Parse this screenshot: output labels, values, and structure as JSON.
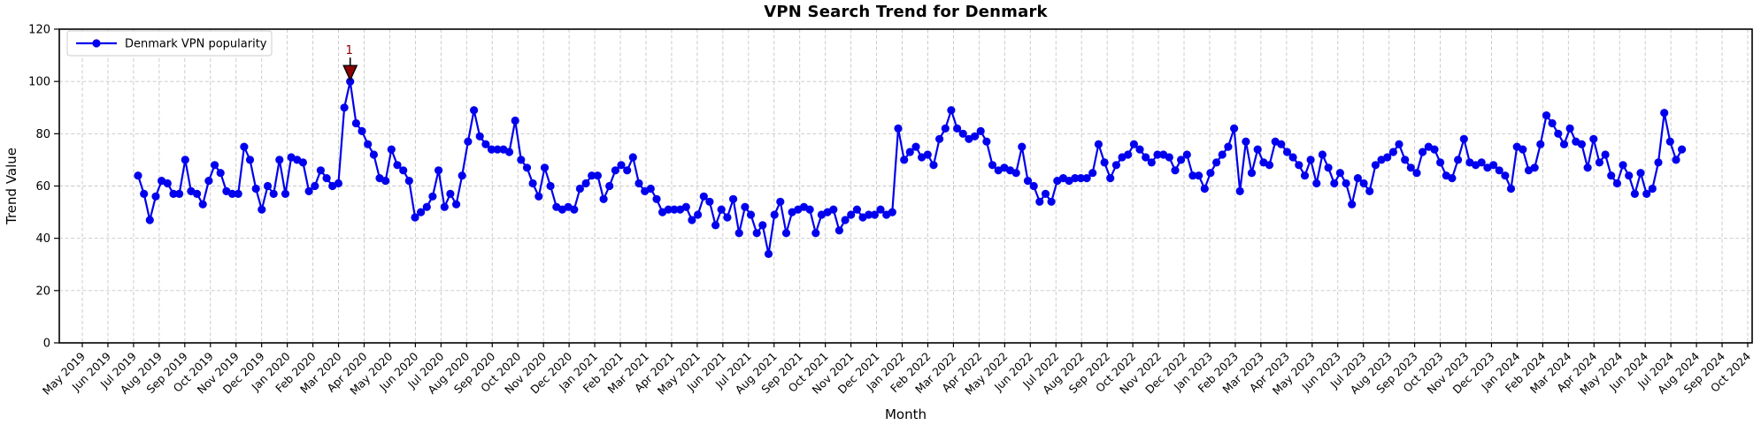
{
  "figure": {
    "title": "VPN Search Trend for Denmark",
    "xlabel": "Month",
    "ylabel": "Trend Value"
  },
  "legend": {
    "label": "Denmark VPN popularity"
  },
  "annotation": {
    "label": "1"
  },
  "chart_data": {
    "type": "line",
    "title": "VPN Search Trend for Denmark",
    "xlabel": "Month",
    "ylabel": "Trend Value",
    "ylim": [
      0,
      120
    ],
    "y_ticks": [
      0,
      20,
      40,
      60,
      80,
      100,
      120
    ],
    "grid": true,
    "grid_style": "dashed",
    "legend_position": "upper left",
    "line_color": "#0000ee",
    "marker": "o",
    "x_tick_labels": [
      "May 2019",
      "Jun 2019",
      "Jul 2019",
      "Aug 2019",
      "Sep 2019",
      "Oct 2019",
      "Nov 2019",
      "Dec 2019",
      "Jan 2020",
      "Feb 2020",
      "Mar 2020",
      "Apr 2020",
      "May 2020",
      "Jun 2020",
      "Jul 2020",
      "Aug 2020",
      "Sep 2020",
      "Oct 2020",
      "Nov 2020",
      "Dec 2020",
      "Jan 2021",
      "Feb 2021",
      "Mar 2021",
      "Apr 2021",
      "May 2021",
      "Jun 2021",
      "Jul 2021",
      "Aug 2021",
      "Sep 2021",
      "Oct 2021",
      "Nov 2021",
      "Dec 2021",
      "Jan 2022",
      "Feb 2022",
      "Mar 2022",
      "Apr 2022",
      "May 2022",
      "Jun 2022",
      "Jul 2022",
      "Aug 2022",
      "Sep 2022",
      "Oct 2022",
      "Nov 2022",
      "Dec 2022",
      "Jan 2023",
      "Feb 2023",
      "Mar 2023",
      "Apr 2023",
      "May 2023",
      "Jun 2023",
      "Jul 2023",
      "Aug 2023",
      "Sep 2023",
      "Oct 2023",
      "Nov 2023",
      "Dec 2023",
      "Jan 2024",
      "Feb 2024",
      "Mar 2024",
      "Apr 2024",
      "May 2024",
      "Jun 2024",
      "Jul 2024",
      "Aug 2024",
      "Sep 2024",
      "Oct 2024"
    ],
    "series": [
      {
        "name": "Denmark VPN popularity",
        "color": "#0000ee",
        "x_start": "2019-07-07",
        "x_interval_days": 7,
        "values": [
          64,
          57,
          47,
          56,
          62,
          61,
          57,
          57,
          70,
          58,
          57,
          53,
          62,
          68,
          65,
          58,
          57,
          57,
          75,
          70,
          59,
          51,
          60,
          57,
          70,
          57,
          71,
          70,
          69,
          58,
          60,
          66,
          63,
          60,
          61,
          90,
          100,
          84,
          81,
          76,
          72,
          63,
          62,
          74,
          68,
          66,
          62,
          48,
          50,
          52,
          56,
          66,
          52,
          57,
          53,
          64,
          77,
          89,
          79,
          76,
          74,
          74,
          74,
          73,
          85,
          70,
          67,
          61,
          56,
          67,
          60,
          52,
          51,
          52,
          51,
          59,
          61,
          64,
          64,
          55,
          60,
          66,
          68,
          66,
          71,
          61,
          58,
          59,
          55,
          50,
          51,
          51,
          51,
          52,
          47,
          49,
          56,
          54,
          45,
          51,
          48,
          55,
          42,
          52,
          49,
          42,
          45,
          34,
          49,
          54,
          42,
          50,
          51,
          52,
          51,
          42,
          49,
          50,
          51,
          43,
          47,
          49,
          51,
          48,
          49,
          49,
          51,
          49,
          50,
          82,
          70,
          73,
          75,
          71,
          72,
          68,
          78,
          82,
          89,
          82,
          80,
          78,
          79,
          81,
          77,
          68,
          66,
          67,
          66,
          65,
          75,
          62,
          60,
          54,
          57,
          54,
          62,
          63,
          62,
          63,
          63,
          63,
          65,
          76,
          69,
          63,
          68,
          71,
          72,
          76,
          74,
          71,
          69,
          72,
          72,
          71,
          66,
          70,
          72,
          64,
          64,
          59,
          65,
          69,
          72,
          75,
          82,
          58,
          77,
          65,
          74,
          69,
          68,
          77,
          76,
          73,
          71,
          68,
          64,
          70,
          61,
          72,
          67,
          61,
          65,
          61,
          53,
          63,
          61,
          58,
          68,
          70,
          71,
          73,
          76,
          70,
          67,
          65,
          73,
          75,
          74,
          69,
          64,
          63,
          70,
          78,
          69,
          68,
          69,
          67,
          68,
          66,
          64,
          59,
          75,
          74,
          66,
          67,
          76,
          87,
          84,
          80,
          76,
          82,
          77,
          76,
          67,
          78,
          69,
          72,
          64,
          61,
          68,
          64,
          57,
          65,
          57,
          59,
          69,
          88,
          77,
          70,
          74
        ]
      }
    ],
    "annotations": [
      {
        "label": "1",
        "point_index": 36,
        "value": 100,
        "color": "#8b0000"
      }
    ]
  }
}
